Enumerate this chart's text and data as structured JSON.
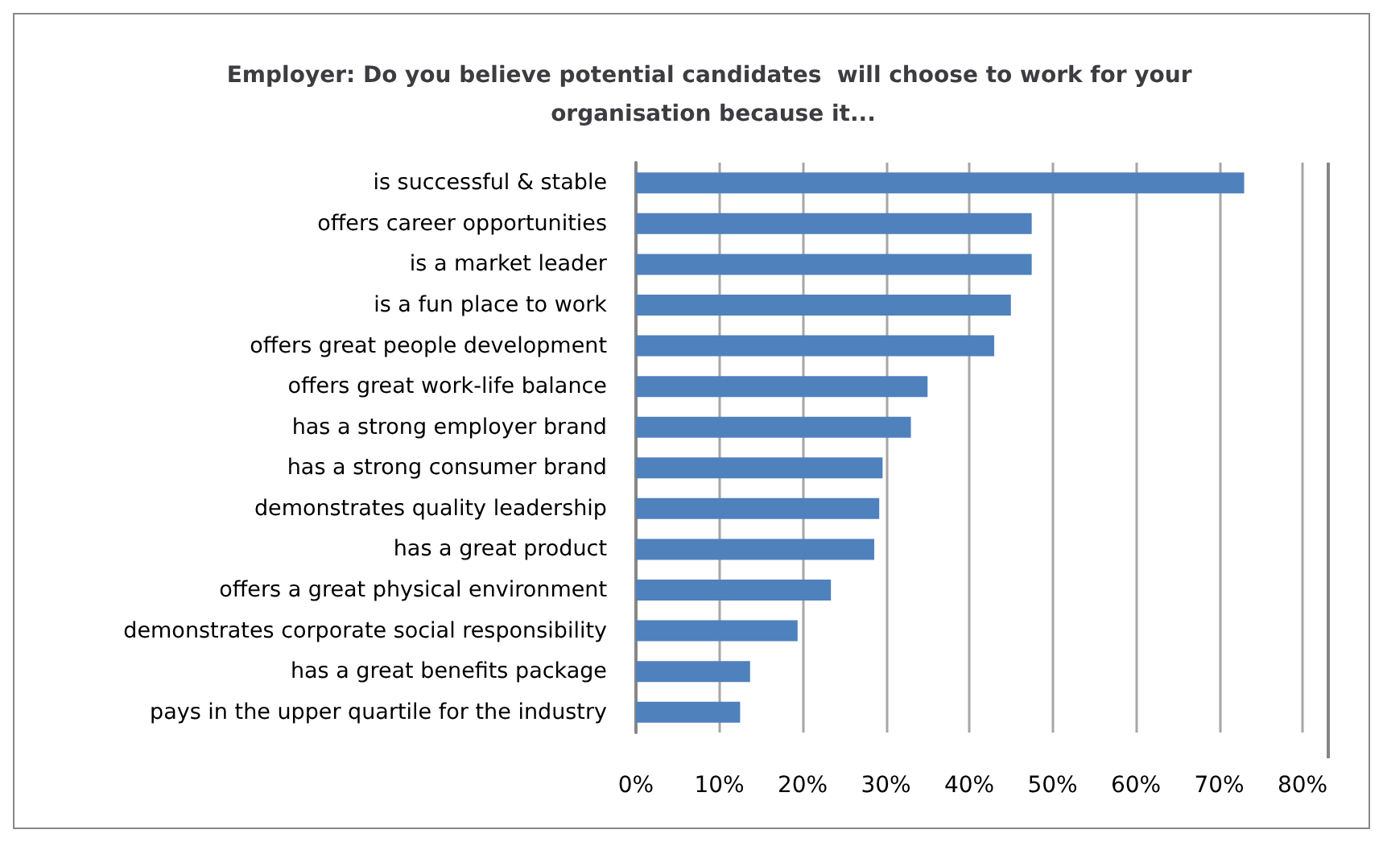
{
  "chart_data": {
    "type": "bar",
    "orientation": "horizontal",
    "title": "Employer: Do you believe potential candidates  will choose to work for your organisation because it...",
    "categories": [
      "is successful & stable",
      "offers career opportunities",
      "is a market leader",
      "is a fun place to work",
      "offers great people development",
      "offers great work-life balance",
      "has a strong employer brand",
      "has a strong consumer brand",
      "demonstrates quality leadership",
      "has a great product",
      "offers a great physical environment",
      "demonstrates corporate social responsibility",
      "has a great benefits package",
      "pays in the upper quartile for the industry"
    ],
    "values": [
      73,
      47.5,
      47.5,
      45,
      43,
      35,
      33,
      29.6,
      29.2,
      28.6,
      23.4,
      19.4,
      13.7,
      12.5
    ],
    "color": "#4f81bd",
    "xlim": [
      0,
      80
    ],
    "xticks": [
      {
        "value": 0,
        "label": "0%"
      },
      {
        "value": 10,
        "label": "10%"
      },
      {
        "value": 20,
        "label": "20%"
      },
      {
        "value": 30,
        "label": "30%"
      },
      {
        "value": 40,
        "label": "40%"
      },
      {
        "value": 50,
        "label": "50%"
      },
      {
        "value": 60,
        "label": "60%"
      },
      {
        "value": 70,
        "label": "70%"
      },
      {
        "value": 80,
        "label": "80%"
      }
    ],
    "grid": "x"
  }
}
